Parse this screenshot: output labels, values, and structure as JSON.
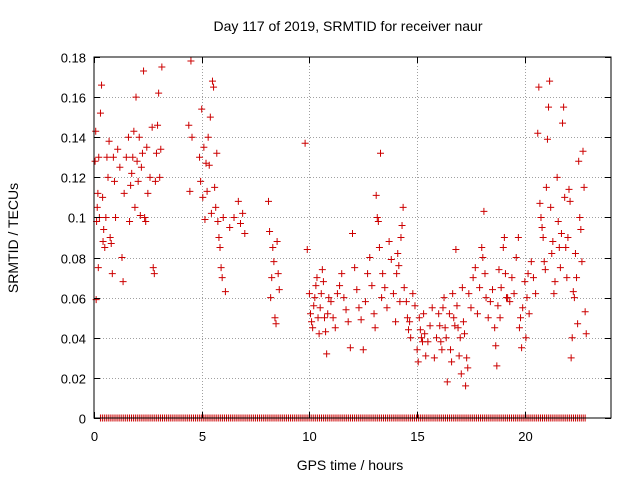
{
  "chart_data": {
    "type": "scatter",
    "title": "Day 117 of 2019, SRMTID for receiver naur",
    "xlabel": "GPS time / hours",
    "ylabel": "SRMTID / TECUs",
    "xlim": [
      0,
      24
    ],
    "ylim": [
      0,
      0.18
    ],
    "xticks": [
      0,
      5,
      10,
      15,
      20
    ],
    "xtick_labels": [
      "0",
      "5",
      "10",
      "15",
      "20"
    ],
    "yticks": [
      0,
      0.02,
      0.04,
      0.06,
      0.08,
      0.1,
      0.12,
      0.14,
      0.16,
      0.18
    ],
    "ytick_labels": [
      "0",
      "0.02",
      "0.04",
      "0.06",
      "0.08",
      "0.1",
      "0.12",
      "0.14",
      "0.16",
      "0.18"
    ],
    "grid": true,
    "marker": "+",
    "color": "#cc0000",
    "zero_band": {
      "x_start": 0.3,
      "x_end": 22.8,
      "y": 0
    },
    "series": [
      {
        "name": "SRMTID",
        "points": [
          [
            0.05,
            0.128
          ],
          [
            0.08,
            0.143
          ],
          [
            0.1,
            0.059
          ],
          [
            0.12,
            0.098
          ],
          [
            0.15,
            0.105
          ],
          [
            0.18,
            0.112
          ],
          [
            0.2,
            0.075
          ],
          [
            0.22,
            0.13
          ],
          [
            0.25,
            0.1
          ],
          [
            0.3,
            0.152
          ],
          [
            0.35,
            0.166
          ],
          [
            0.4,
            0.11
          ],
          [
            0.42,
            0.088
          ],
          [
            0.45,
            0.094
          ],
          [
            0.5,
            0.085
          ],
          [
            0.55,
            0.1
          ],
          [
            0.6,
            0.13
          ],
          [
            0.65,
            0.12
          ],
          [
            0.7,
            0.138
          ],
          [
            0.75,
            0.09
          ],
          [
            0.8,
            0.087
          ],
          [
            0.85,
            0.072
          ],
          [
            0.9,
            0.13
          ],
          [
            0.95,
            0.118
          ],
          [
            1.0,
            0.1
          ],
          [
            1.1,
            0.134
          ],
          [
            1.2,
            0.125
          ],
          [
            1.3,
            0.08
          ],
          [
            1.35,
            0.068
          ],
          [
            1.4,
            0.112
          ],
          [
            1.5,
            0.13
          ],
          [
            1.6,
            0.14
          ],
          [
            1.65,
            0.098
          ],
          [
            1.7,
            0.116
          ],
          [
            1.75,
            0.122
          ],
          [
            1.8,
            0.13
          ],
          [
            1.85,
            0.143
          ],
          [
            1.9,
            0.105
          ],
          [
            1.95,
            0.16
          ],
          [
            2.0,
            0.128
          ],
          [
            2.05,
            0.118
          ],
          [
            2.1,
            0.14
          ],
          [
            2.15,
            0.101
          ],
          [
            2.2,
            0.125
          ],
          [
            2.25,
            0.132
          ],
          [
            2.3,
            0.173
          ],
          [
            2.35,
            0.1
          ],
          [
            2.4,
            0.098
          ],
          [
            2.45,
            0.135
          ],
          [
            2.5,
            0.112
          ],
          [
            2.6,
            0.12
          ],
          [
            2.7,
            0.145
          ],
          [
            2.75,
            0.075
          ],
          [
            2.8,
            0.072
          ],
          [
            2.85,
            0.118
          ],
          [
            2.9,
            0.132
          ],
          [
            2.95,
            0.146
          ],
          [
            3.0,
            0.162
          ],
          [
            3.05,
            0.12
          ],
          [
            3.1,
            0.134
          ],
          [
            3.15,
            0.175
          ],
          [
            4.4,
            0.146
          ],
          [
            4.45,
            0.113
          ],
          [
            4.5,
            0.178
          ],
          [
            4.55,
            0.14
          ],
          [
            4.9,
            0.13
          ],
          [
            4.95,
            0.118
          ],
          [
            5.0,
            0.154
          ],
          [
            5.05,
            0.11
          ],
          [
            5.1,
            0.135
          ],
          [
            5.15,
            0.099
          ],
          [
            5.2,
            0.127
          ],
          [
            5.25,
            0.113
          ],
          [
            5.3,
            0.14
          ],
          [
            5.35,
            0.126
          ],
          [
            5.4,
            0.15
          ],
          [
            5.45,
            0.102
          ],
          [
            5.5,
            0.168
          ],
          [
            5.55,
            0.165
          ],
          [
            5.6,
            0.115
          ],
          [
            5.65,
            0.105
          ],
          [
            5.7,
            0.132
          ],
          [
            5.75,
            0.098
          ],
          [
            5.8,
            0.09
          ],
          [
            5.85,
            0.085
          ],
          [
            5.9,
            0.075
          ],
          [
            5.95,
            0.07
          ],
          [
            6.0,
            0.1
          ],
          [
            6.1,
            0.063
          ],
          [
            6.3,
            0.095
          ],
          [
            6.5,
            0.1
          ],
          [
            6.7,
            0.108
          ],
          [
            6.8,
            0.097
          ],
          [
            6.9,
            0.102
          ],
          [
            7.0,
            0.092
          ],
          [
            8.1,
            0.108
          ],
          [
            8.15,
            0.093
          ],
          [
            8.2,
            0.06
          ],
          [
            8.25,
            0.07
          ],
          [
            8.3,
            0.085
          ],
          [
            8.35,
            0.078
          ],
          [
            8.4,
            0.05
          ],
          [
            8.45,
            0.047
          ],
          [
            8.5,
            0.088
          ],
          [
            8.55,
            0.072
          ],
          [
            8.6,
            0.064
          ],
          [
            9.8,
            0.137
          ],
          [
            9.9,
            0.084
          ],
          [
            10.0,
            0.062
          ],
          [
            10.05,
            0.052
          ],
          [
            10.1,
            0.048
          ],
          [
            10.15,
            0.045
          ],
          [
            10.2,
            0.056
          ],
          [
            10.25,
            0.06
          ],
          [
            10.3,
            0.066
          ],
          [
            10.35,
            0.07
          ],
          [
            10.4,
            0.05
          ],
          [
            10.45,
            0.042
          ],
          [
            10.5,
            0.055
          ],
          [
            10.55,
            0.062
          ],
          [
            10.6,
            0.074
          ],
          [
            10.65,
            0.068
          ],
          [
            10.7,
            0.05
          ],
          [
            10.75,
            0.043
          ],
          [
            10.8,
            0.032
          ],
          [
            10.85,
            0.052
          ],
          [
            10.9,
            0.06
          ],
          [
            11.0,
            0.058
          ],
          [
            11.1,
            0.05
          ],
          [
            11.2,
            0.045
          ],
          [
            11.3,
            0.062
          ],
          [
            11.4,
            0.066
          ],
          [
            11.5,
            0.072
          ],
          [
            11.6,
            0.06
          ],
          [
            11.7,
            0.054
          ],
          [
            11.8,
            0.048
          ],
          [
            11.9,
            0.035
          ],
          [
            12.0,
            0.092
          ],
          [
            12.1,
            0.075
          ],
          [
            12.2,
            0.064
          ],
          [
            12.3,
            0.055
          ],
          [
            12.4,
            0.049
          ],
          [
            12.5,
            0.034
          ],
          [
            12.6,
            0.058
          ],
          [
            12.7,
            0.072
          ],
          [
            12.8,
            0.08
          ],
          [
            12.9,
            0.066
          ],
          [
            13.0,
            0.052
          ],
          [
            13.05,
            0.045
          ],
          [
            13.1,
            0.111
          ],
          [
            13.15,
            0.1
          ],
          [
            13.2,
            0.098
          ],
          [
            13.25,
            0.085
          ],
          [
            13.3,
            0.132
          ],
          [
            13.35,
            0.06
          ],
          [
            13.4,
            0.072
          ],
          [
            13.5,
            0.065
          ],
          [
            13.6,
            0.055
          ],
          [
            13.7,
            0.088
          ],
          [
            13.8,
            0.079
          ],
          [
            13.9,
            0.062
          ],
          [
            14.0,
            0.048
          ],
          [
            14.05,
            0.072
          ],
          [
            14.1,
            0.082
          ],
          [
            14.15,
            0.076
          ],
          [
            14.2,
            0.058
          ],
          [
            14.25,
            0.09
          ],
          [
            14.3,
            0.096
          ],
          [
            14.35,
            0.105
          ],
          [
            14.4,
            0.065
          ],
          [
            14.5,
            0.058
          ],
          [
            14.55,
            0.05
          ],
          [
            14.6,
            0.044
          ],
          [
            14.65,
            0.048
          ],
          [
            14.7,
            0.04
          ],
          [
            14.8,
            0.062
          ],
          [
            14.9,
            0.056
          ],
          [
            15.0,
            0.034
          ],
          [
            15.05,
            0.028
          ],
          [
            15.1,
            0.05
          ],
          [
            15.15,
            0.044
          ],
          [
            15.2,
            0.04
          ],
          [
            15.25,
            0.038
          ],
          [
            15.3,
            0.052
          ],
          [
            15.35,
            0.042
          ],
          [
            15.4,
            0.031
          ],
          [
            15.5,
            0.038
          ],
          [
            15.6,
            0.046
          ],
          [
            15.7,
            0.055
          ],
          [
            15.8,
            0.03
          ],
          [
            15.9,
            0.04
          ],
          [
            16.0,
            0.052
          ],
          [
            16.05,
            0.046
          ],
          [
            16.1,
            0.038
          ],
          [
            16.15,
            0.034
          ],
          [
            16.2,
            0.055
          ],
          [
            16.25,
            0.06
          ],
          [
            16.3,
            0.045
          ],
          [
            16.35,
            0.04
          ],
          [
            16.4,
            0.018
          ],
          [
            16.5,
            0.052
          ],
          [
            16.55,
            0.034
          ],
          [
            16.6,
            0.028
          ],
          [
            16.65,
            0.062
          ],
          [
            16.7,
            0.05
          ],
          [
            16.75,
            0.046
          ],
          [
            16.8,
            0.084
          ],
          [
            16.85,
            0.056
          ],
          [
            16.9,
            0.045
          ],
          [
            16.95,
            0.031
          ],
          [
            17.0,
            0.04
          ],
          [
            17.05,
            0.022
          ],
          [
            17.1,
            0.065
          ],
          [
            17.15,
            0.048
          ],
          [
            17.2,
            0.042
          ],
          [
            17.25,
            0.016
          ],
          [
            17.3,
            0.03
          ],
          [
            17.35,
            0.025
          ],
          [
            17.4,
            0.062
          ],
          [
            17.5,
            0.055
          ],
          [
            17.6,
            0.07
          ],
          [
            17.7,
            0.075
          ],
          [
            17.8,
            0.052
          ],
          [
            17.9,
            0.065
          ],
          [
            18.0,
            0.085
          ],
          [
            18.05,
            0.08
          ],
          [
            18.1,
            0.103
          ],
          [
            18.15,
            0.072
          ],
          [
            18.2,
            0.06
          ],
          [
            18.3,
            0.05
          ],
          [
            18.4,
            0.058
          ],
          [
            18.5,
            0.064
          ],
          [
            18.6,
            0.045
          ],
          [
            18.65,
            0.036
          ],
          [
            18.7,
            0.026
          ],
          [
            18.75,
            0.056
          ],
          [
            18.8,
            0.074
          ],
          [
            18.85,
            0.05
          ],
          [
            18.9,
            0.065
          ],
          [
            19.0,
            0.085
          ],
          [
            19.05,
            0.09
          ],
          [
            19.1,
            0.072
          ],
          [
            19.15,
            0.06
          ],
          [
            19.2,
            0.06
          ],
          [
            19.3,
            0.058
          ],
          [
            19.4,
            0.07
          ],
          [
            19.5,
            0.062
          ],
          [
            19.6,
            0.08
          ],
          [
            19.7,
            0.09
          ],
          [
            19.75,
            0.045
          ],
          [
            19.8,
            0.05
          ],
          [
            19.85,
            0.035
          ],
          [
            19.9,
            0.055
          ],
          [
            20.0,
            0.068
          ],
          [
            20.05,
            0.04
          ],
          [
            20.1,
            0.06
          ],
          [
            20.15,
            0.072
          ],
          [
            20.2,
            0.052
          ],
          [
            20.3,
            0.078
          ],
          [
            20.4,
            0.07
          ],
          [
            20.5,
            0.062
          ],
          [
            20.6,
            0.142
          ],
          [
            20.65,
            0.165
          ],
          [
            20.7,
            0.107
          ],
          [
            20.75,
            0.1
          ],
          [
            20.8,
            0.095
          ],
          [
            20.85,
            0.09
          ],
          [
            20.9,
            0.078
          ],
          [
            20.95,
            0.074
          ],
          [
            21.0,
            0.115
          ],
          [
            21.05,
            0.139
          ],
          [
            21.1,
            0.155
          ],
          [
            21.15,
            0.168
          ],
          [
            21.2,
            0.105
          ],
          [
            21.25,
            0.082
          ],
          [
            21.3,
            0.088
          ],
          [
            21.35,
            0.062
          ],
          [
            21.4,
            0.068
          ],
          [
            21.5,
            0.12
          ],
          [
            21.55,
            0.098
          ],
          [
            21.6,
            0.085
          ],
          [
            21.65,
            0.075
          ],
          [
            21.7,
            0.092
          ],
          [
            21.75,
            0.147
          ],
          [
            21.8,
            0.155
          ],
          [
            21.85,
            0.11
          ],
          [
            21.9,
            0.085
          ],
          [
            21.95,
            0.07
          ],
          [
            22.0,
            0.09
          ],
          [
            22.05,
            0.114
          ],
          [
            22.1,
            0.108
          ],
          [
            22.15,
            0.03
          ],
          [
            22.2,
            0.04
          ],
          [
            22.25,
            0.063
          ],
          [
            22.3,
            0.06
          ],
          [
            22.35,
            0.082
          ],
          [
            22.4,
            0.07
          ],
          [
            22.45,
            0.047
          ],
          [
            22.5,
            0.128
          ],
          [
            22.55,
            0.1
          ],
          [
            22.6,
            0.094
          ],
          [
            22.65,
            0.078
          ],
          [
            22.7,
            0.133
          ],
          [
            22.75,
            0.115
          ],
          [
            22.8,
            0.053
          ],
          [
            22.85,
            0.042
          ]
        ]
      }
    ]
  }
}
